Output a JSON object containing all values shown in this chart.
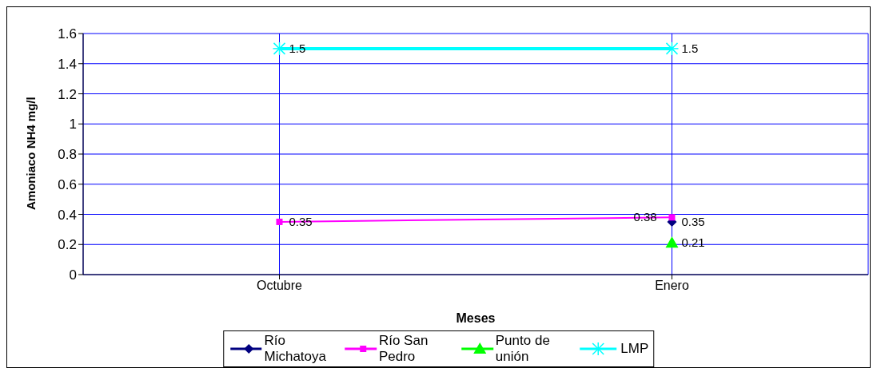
{
  "chart_data": {
    "type": "line",
    "xlabel": "Meses",
    "ylabel": "Amoniaco NH4 mg/l",
    "categories": [
      "Octubre",
      "Enero"
    ],
    "series": [
      {
        "name": "Río Michatoya",
        "color": "#000080",
        "marker": "diamond",
        "values": [
          null,
          0.35
        ]
      },
      {
        "name": "Río San Pedro",
        "color": "#ff00ff",
        "marker": "square",
        "values": [
          0.35,
          0.38
        ]
      },
      {
        "name": "Punto de unión",
        "color": "#00ff00",
        "marker": "triangle",
        "values": [
          null,
          0.21
        ]
      },
      {
        "name": "LMP",
        "color": "#00ffff",
        "marker": "cross",
        "values": [
          1.5,
          1.5
        ]
      }
    ],
    "ylim": [
      0,
      1.6
    ],
    "yticks": [
      0,
      0.2,
      0.4,
      0.6,
      0.8,
      1,
      1.2,
      1.4,
      1.6
    ],
    "grid": true,
    "legend": "bottom",
    "data_labels": true
  }
}
